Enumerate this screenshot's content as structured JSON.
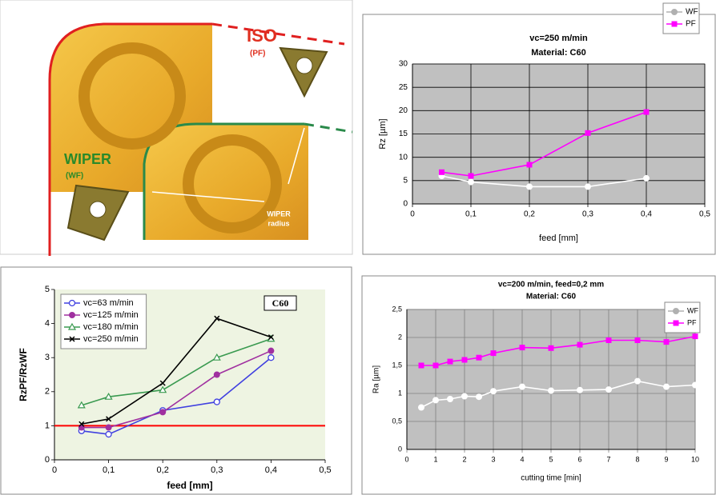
{
  "illustration": {
    "iso": "ISO",
    "iso_code": "(PF)",
    "wiper": "WIPER",
    "wiper_code": "(WF)",
    "radius_label": [
      "WIPER",
      "radius"
    ]
  },
  "chart_data": [
    {
      "type": "line",
      "title": "vc=250 m/min",
      "subtitle": "Material: C60",
      "x_label": "feed [mm]",
      "y_label": "Rz [µm]",
      "x": [
        0.05,
        0.1,
        0.2,
        0.3,
        0.4
      ],
      "series": [
        {
          "name": "WF",
          "color": "#ffffff",
          "marker": "circle-filled",
          "values": [
            6,
            4.7,
            3.7,
            3.7,
            5.5
          ]
        },
        {
          "name": "PF",
          "color": "#ff00ff",
          "marker": "square",
          "values": [
            6.8,
            6,
            8.4,
            15.2,
            19.7
          ]
        }
      ],
      "xlim": [
        0,
        0.5
      ],
      "xticks": [
        0,
        {
          "value": 0.1,
          "label": "0,1"
        },
        {
          "value": 0.2,
          "label": "0,2"
        },
        {
          "value": 0.3,
          "label": "0,3"
        },
        {
          "value": 0.4,
          "label": "0,4"
        },
        {
          "value": 0.5,
          "label": "0,5"
        }
      ],
      "ylim": [
        0,
        30
      ],
      "yticks": [
        0,
        5,
        10,
        15,
        20,
        25,
        30
      ],
      "grid": true,
      "grid_color": "#000000",
      "plot_background": "#c0c0c0",
      "legend": "upper right"
    },
    {
      "type": "line",
      "annotation": "C60",
      "x_label": "feed [mm]",
      "y_label": "RzPF/RzWF",
      "x": [
        0.05,
        0.1,
        0.2,
        0.3,
        0.4
      ],
      "series": [
        {
          "name": "vc=63 m/min",
          "color": "#4040e0",
          "marker": "circle-open",
          "values": [
            0.85,
            0.75,
            1.45,
            1.7,
            3.0
          ]
        },
        {
          "name": "vc=125 m/min",
          "color": "#a030a0",
          "marker": "circle-filled",
          "values": [
            0.95,
            0.95,
            1.4,
            2.5,
            3.2
          ]
        },
        {
          "name": "vc=180 m/min",
          "color": "#3a9a50",
          "marker": "triangle",
          "values": [
            1.6,
            1.85,
            2.05,
            3.0,
            3.55
          ]
        },
        {
          "name": "vc=250 m/min",
          "color": "#000000",
          "marker": "x",
          "values": [
            1.05,
            1.2,
            2.25,
            4.15,
            3.6
          ]
        }
      ],
      "reference_line": 1,
      "reference_color": "#ff0000",
      "xlim": [
        0,
        0.5
      ],
      "xticks": [
        0,
        {
          "value": 0.1,
          "label": "0,1"
        },
        {
          "value": 0.2,
          "label": "0,2"
        },
        {
          "value": 0.3,
          "label": "0,3"
        },
        {
          "value": 0.4,
          "label": "0,4"
        },
        {
          "value": 0.5,
          "label": "0,5"
        }
      ],
      "ylim": [
        0,
        5
      ],
      "yticks": [
        0,
        1,
        2,
        3,
        4,
        5
      ],
      "grid": false,
      "plot_background": "#eef4e2",
      "legend": "upper left"
    },
    {
      "type": "line",
      "title": "vc=200 m/min, feed=0,2 mm",
      "subtitle": "Material: C60",
      "x_label": "cutting time [min]",
      "y_label": "Ra [µm]",
      "x": [
        0.5,
        1,
        1.5,
        2,
        2.5,
        3,
        4,
        5,
        6,
        7,
        8,
        9,
        10
      ],
      "series": [
        {
          "name": "WF",
          "color": "#ffffff",
          "marker": "circle-filled",
          "values": [
            0.75,
            0.88,
            0.9,
            0.95,
            0.94,
            1.04,
            1.12,
            1.05,
            1.06,
            1.07,
            1.22,
            1.12,
            1.15
          ]
        },
        {
          "name": "PF",
          "color": "#ff00ff",
          "marker": "square",
          "values": [
            1.5,
            1.5,
            1.57,
            1.6,
            1.64,
            1.72,
            1.82,
            1.81,
            1.87,
            1.95,
            1.95,
            1.92,
            2.02
          ]
        }
      ],
      "xlim": [
        0,
        10
      ],
      "xticks": [
        0,
        1,
        2,
        3,
        4,
        5,
        6,
        7,
        8,
        9,
        10
      ],
      "ylim": [
        0,
        2.5
      ],
      "yticks": [
        0,
        {
          "value": 0.5,
          "label": "0,5"
        },
        1,
        {
          "value": 1.5,
          "label": "1,5"
        },
        2,
        {
          "value": 2.5,
          "label": "2,5"
        }
      ],
      "grid": true,
      "grid_color": "#808080",
      "plot_background": "#c0c0c0",
      "legend": "upper right"
    }
  ]
}
